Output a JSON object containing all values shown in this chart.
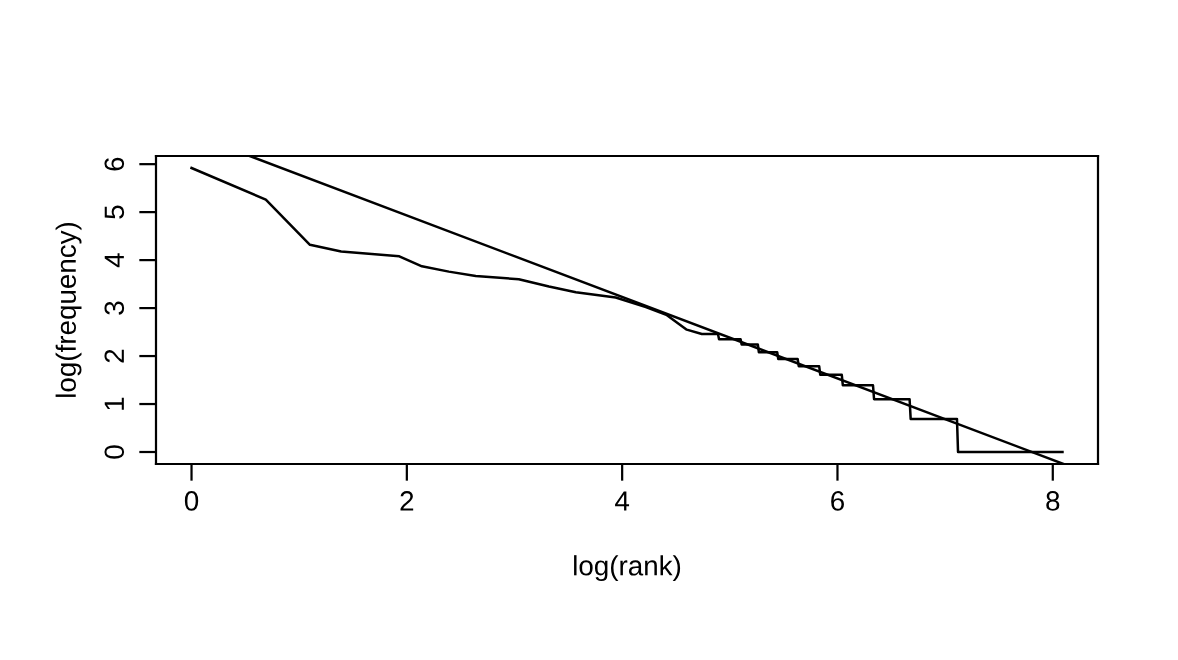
{
  "chart_data": {
    "type": "line",
    "xlabel": "log(rank)",
    "ylabel": "log(frequency)",
    "xlim": [
      -0.33,
      8.42
    ],
    "ylim": [
      -0.25,
      6.17
    ],
    "xticks": [
      0,
      2,
      4,
      6,
      8
    ],
    "yticks": [
      0,
      1,
      2,
      3,
      4,
      5,
      6
    ],
    "grid": false,
    "legend": false,
    "series": [
      {
        "color": "#000000",
        "x": [
          0,
          0.69,
          1.1,
          1.39,
          1.93,
          2.14,
          2.39,
          2.64,
          3.04,
          3.32,
          3.57,
          3.94,
          4.22,
          4.41,
          4.6,
          4.74,
          4.89,
          4.9,
          5.1,
          5.11,
          5.26,
          5.27,
          5.44,
          5.45,
          5.63,
          5.64,
          5.83,
          5.84,
          6.04,
          6.05,
          6.33,
          6.34,
          6.67,
          6.68,
          7.11,
          7.12,
          8.09
        ],
        "values": [
          5.92,
          5.26,
          4.32,
          4.18,
          4.08,
          3.87,
          3.76,
          3.67,
          3.6,
          3.45,
          3.33,
          3.22,
          3.02,
          2.86,
          2.55,
          2.46,
          2.46,
          2.35,
          2.35,
          2.24,
          2.24,
          2.08,
          2.08,
          1.94,
          1.94,
          1.79,
          1.79,
          1.61,
          1.61,
          1.39,
          1.39,
          1.1,
          1.1,
          0.69,
          0.69,
          0,
          0
        ]
      },
      {
        "color": "#000000",
        "x": [
          0.54,
          8.1
        ],
        "values": [
          6.17,
          -0.25
        ]
      }
    ]
  }
}
